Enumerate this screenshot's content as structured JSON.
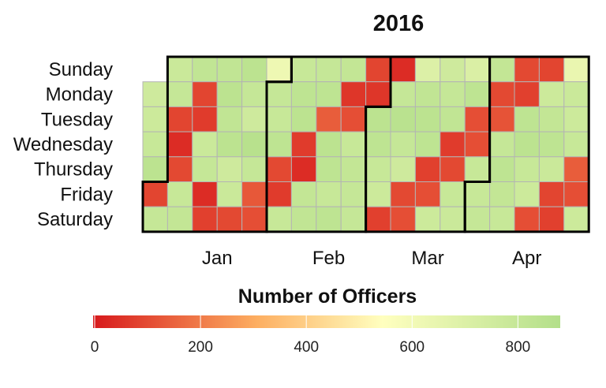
{
  "chart_data": {
    "type": "heatmap",
    "title": "2016",
    "row_labels": [
      "Sunday",
      "Monday",
      "Tuesday",
      "Wednesday",
      "Thursday",
      "Friday",
      "Saturday"
    ],
    "column_labels": [
      "Jan",
      "Feb",
      "Mar",
      "Apr"
    ],
    "legend": {
      "title": "Number of Officers",
      "range": [
        0,
        880
      ],
      "ticks": [
        "0",
        "200",
        "400",
        "600",
        "800"
      ],
      "tick_values": [
        0,
        200,
        400,
        600,
        800
      ]
    },
    "colors": {
      "low": "#d7191c",
      "mid_low": "#fdae61",
      "mid": "#ffffbf",
      "high": "#b3df8a"
    },
    "week_start": "Sunday",
    "first_day_of_year": "Friday",
    "last_week": 17,
    "values": [
      [
        null,
        760,
        770,
        790,
        840,
        90,
        800
      ],
      [
        780,
        800,
        90,
        40,
        100,
        790,
        810
      ],
      [
        820,
        90,
        70,
        780,
        800,
        40,
        80
      ],
      [
        820,
        840,
        820,
        840,
        760,
        780,
        100
      ],
      [
        840,
        800,
        760,
        860,
        800,
        130,
        110
      ],
      [
        620,
        800,
        790,
        830,
        100,
        70,
        790
      ],
      [
        790,
        830,
        840,
        70,
        40,
        810,
        820
      ],
      [
        800,
        830,
        140,
        840,
        830,
        790,
        830
      ],
      [
        810,
        60,
        110,
        790,
        810,
        800,
        800
      ],
      [
        90,
        60,
        840,
        830,
        790,
        770,
        80
      ],
      [
        40,
        800,
        850,
        800,
        760,
        100,
        110
      ],
      [
        700,
        820,
        840,
        830,
        80,
        110,
        770
      ],
      [
        760,
        800,
        820,
        70,
        100,
        790,
        780
      ],
      [
        710,
        830,
        110,
        110,
        790,
        790,
        800
      ],
      [
        810,
        100,
        120,
        800,
        830,
        810,
        790
      ],
      [
        100,
        80,
        830,
        840,
        790,
        770,
        110
      ],
      [
        90,
        770,
        810,
        830,
        780,
        90,
        80
      ],
      [
        640,
        780,
        770,
        790,
        140,
        110,
        770
      ]
    ]
  }
}
